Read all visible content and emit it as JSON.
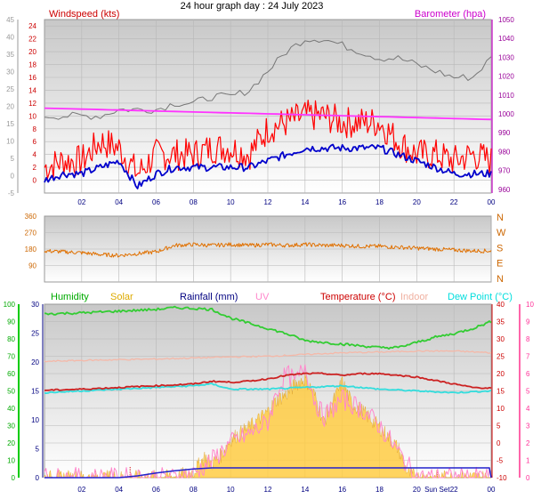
{
  "title": "24 hour graph day : 24 July 2023",
  "chart_data": [
    {
      "type": "line",
      "panel": "wind-baro",
      "left_label": "Windspeed (kts)",
      "right_label": "Barometer (hpa)",
      "x_ticks": [
        "02",
        "04",
        "06",
        "08",
        "10",
        "12",
        "14",
        "16",
        "18",
        "20",
        "22",
        "00"
      ],
      "y_left_outer_ticks": [
        "-5",
        "0",
        "5",
        "10",
        "15",
        "20",
        "25",
        "30",
        "35",
        "40",
        "45"
      ],
      "y_left_outer_range": [
        -5,
        45
      ],
      "y_left_inner_ticks": [
        "0",
        "2",
        "4",
        "6",
        "8",
        "10",
        "12",
        "14",
        "16",
        "18",
        "20",
        "22",
        "24"
      ],
      "y_left_inner_range": [
        -2,
        25
      ],
      "y_right_ticks": [
        "960",
        "970",
        "980",
        "990",
        "1000",
        "1010",
        "1020",
        "1030",
        "1040",
        "1050"
      ],
      "y_right_range": [
        958,
        1050
      ],
      "grid": true,
      "series": [
        {
          "name": "Windspeed (kts)",
          "color": "#ff0000",
          "x": [
            0,
            1,
            2,
            3,
            4,
            5,
            6,
            7,
            8,
            9,
            10,
            11,
            12,
            13,
            14,
            15,
            16,
            17,
            18,
            19,
            20,
            21,
            22,
            23,
            24
          ],
          "values": [
            2,
            3,
            3,
            6,
            5,
            1,
            4,
            4,
            4,
            5,
            5,
            4,
            8,
            9,
            10,
            10,
            9,
            9,
            9,
            6,
            4,
            4,
            3,
            4,
            3
          ]
        },
        {
          "name": "Gust",
          "color": "#777777",
          "x": [
            0,
            1,
            2,
            3,
            4,
            5,
            6,
            7,
            8,
            9,
            10,
            11,
            12,
            13,
            14,
            15,
            16,
            17,
            18,
            19,
            20,
            21,
            22,
            23,
            24
          ],
          "values": [
            10,
            10,
            10,
            10,
            11,
            11,
            11,
            12,
            12,
            13,
            13,
            14,
            17,
            20,
            22,
            22,
            21,
            20,
            19,
            19,
            18,
            17,
            16,
            16,
            19
          ]
        },
        {
          "name": "Average",
          "color": "#0000cc",
          "x": [
            0,
            1,
            2,
            3,
            4,
            5,
            6,
            7,
            8,
            9,
            10,
            11,
            12,
            13,
            14,
            15,
            16,
            17,
            18,
            19,
            20,
            21,
            22,
            23,
            24
          ],
          "values": [
            0,
            1,
            1,
            2,
            3,
            -1,
            1,
            2,
            2,
            2,
            2,
            2,
            3,
            4,
            5,
            5,
            5,
            5,
            5,
            4,
            3,
            2,
            1,
            1,
            1
          ]
        },
        {
          "name": "Barometer (hpa)",
          "color": "#ff33ff",
          "x": [
            0,
            2,
            4,
            6,
            8,
            10,
            12,
            14,
            16,
            18,
            20,
            22,
            24
          ],
          "values": [
            1003,
            1002.5,
            1002,
            1001.5,
            1001,
            1000.5,
            1000,
            999.5,
            999,
            998.5,
            998,
            997.5,
            997
          ]
        }
      ]
    },
    {
      "type": "line",
      "panel": "wind-direction",
      "y_left_ticks": [
        "90",
        "180",
        "270",
        "360"
      ],
      "y_range": [
        0,
        360
      ],
      "y_right_ticks": [
        "N",
        "W",
        "S",
        "E",
        "N"
      ],
      "grid": true,
      "series": [
        {
          "name": "Wind direction",
          "color": "#e07000",
          "x": [
            0,
            1,
            2,
            3,
            4,
            5,
            6,
            7,
            8,
            9,
            10,
            11,
            12,
            13,
            14,
            15,
            16,
            17,
            18,
            19,
            20,
            21,
            22,
            23,
            24
          ],
          "values": [
            170,
            165,
            160,
            150,
            145,
            155,
            165,
            200,
            205,
            200,
            205,
            200,
            205,
            200,
            205,
            200,
            200,
            195,
            195,
            190,
            185,
            180,
            175,
            170,
            170
          ]
        }
      ]
    },
    {
      "type": "area",
      "panel": "temp-humidity-solar",
      "headers": {
        "humidity": "Humidity",
        "solar": "Solar",
        "rainfall": "Rainfall (mm)",
        "uv": "UV",
        "temperature": "Temperature (°C)",
        "indoor": "Indoor",
        "dewpoint": "Dew Point (°C)"
      },
      "header_colors": {
        "humidity": "#00aa00",
        "solar": "#ddaa00",
        "rainfall": "#000080",
        "uv": "#ff88cc",
        "temperature": "#cc0000",
        "indoor": "#f0b0a0",
        "dewpoint": "#00dddd"
      },
      "x_ticks": [
        "02",
        "04",
        "06",
        "08",
        "10",
        "12",
        "14",
        "16",
        "18",
        "20",
        "Sun Set",
        "22",
        "00"
      ],
      "y_humidity_ticks": [
        "0",
        "10",
        "20",
        "30",
        "40",
        "50",
        "60",
        "70",
        "80",
        "90",
        "100"
      ],
      "y_rain_ticks": [
        "0",
        "5",
        "10",
        "15",
        "20",
        "25",
        "30"
      ],
      "y_temp_ticks": [
        "-10",
        "-5",
        "0",
        "5",
        "10",
        "15",
        "20",
        "25",
        "30",
        "35",
        "40"
      ],
      "y_temp_range": [
        -10,
        40
      ],
      "y_uv_ticks": [
        "0",
        "1",
        "2",
        "3",
        "4",
        "5",
        "6",
        "7",
        "8",
        "9",
        "10"
      ],
      "y_uv_range": [
        0,
        10
      ],
      "grid": true,
      "series": [
        {
          "name": "Humidity",
          "color": "#33cc33",
          "axis": "temp",
          "x": [
            0,
            2,
            4,
            6,
            7,
            8,
            9,
            10,
            11,
            12,
            13,
            14,
            15,
            16,
            17,
            18,
            19,
            20,
            21,
            22,
            23,
            24
          ],
          "values": [
            37.2,
            37.5,
            38,
            38.5,
            39,
            38.8,
            38.5,
            36,
            34.5,
            33,
            31.5,
            29.5,
            29,
            28.5,
            28,
            27.5,
            27.5,
            29,
            30.5,
            31.5,
            33,
            35
          ]
        },
        {
          "name": "Temperature (°C)",
          "color": "#cc2222",
          "axis": "temp",
          "x": [
            0,
            2,
            4,
            6,
            8,
            9,
            10,
            11,
            12,
            13,
            14,
            15,
            16,
            17,
            18,
            19,
            20,
            21,
            22,
            23,
            24
          ],
          "values": [
            15.2,
            15.5,
            16,
            16.5,
            17,
            17.8,
            17.5,
            17.8,
            18.5,
            19.5,
            20,
            20,
            19.5,
            20,
            20,
            19.5,
            19,
            18,
            17,
            16,
            15.8
          ]
        },
        {
          "name": "Indoor",
          "color": "#f5b8a8",
          "axis": "temp",
          "x": [
            0,
            2,
            4,
            6,
            8,
            10,
            12,
            14,
            16,
            18,
            20,
            22,
            24
          ],
          "values": [
            23.5,
            23.8,
            24,
            24.2,
            24.5,
            24.8,
            25,
            25.5,
            26,
            26.2,
            26.5,
            26.5,
            26
          ]
        },
        {
          "name": "Dew Point (°C)",
          "color": "#33dddd",
          "axis": "temp",
          "x": [
            0,
            2,
            4,
            6,
            8,
            9,
            10,
            12,
            14,
            16,
            18,
            20,
            22,
            24
          ],
          "values": [
            14.5,
            15,
            15.5,
            16,
            16.5,
            17,
            15.5,
            15.5,
            16,
            16.5,
            15.5,
            15,
            14.5,
            15
          ]
        },
        {
          "name": "Solar",
          "color": "#ffcc44",
          "axis": "uv",
          "x": [
            0,
            6,
            7,
            8,
            8.6,
            9,
            9.5,
            10,
            11,
            12,
            12.5,
            13,
            13.5,
            14,
            14.5,
            15,
            16,
            16.5,
            17,
            18,
            19,
            19.5,
            20,
            24
          ],
          "values": [
            0,
            0,
            0.05,
            0.3,
            1.2,
            0.8,
            1.3,
            2.2,
            2.9,
            3.8,
            4.5,
            4.8,
            5.4,
            5.7,
            4.8,
            3.2,
            5.5,
            4.3,
            3.9,
            2.9,
            1.7,
            0.3,
            0,
            0
          ]
        },
        {
          "name": "UV",
          "color": "#ff88cc",
          "axis": "uv",
          "x": [
            0,
            6,
            7,
            8,
            9,
            10,
            11,
            12,
            12.5,
            13,
            13.5,
            14,
            14.5,
            15,
            16,
            17,
            18,
            19,
            20,
            24
          ],
          "values": [
            0,
            0,
            0,
            0.2,
            1,
            2,
            2.5,
            3.2,
            5,
            6,
            5.5,
            6.5,
            4.5,
            3.5,
            4.5,
            4,
            3,
            1.5,
            0,
            0
          ]
        },
        {
          "name": "Rainfall (mm)",
          "color": "#2222cc",
          "axis": "rain",
          "x": [
            0,
            4,
            5,
            6,
            7,
            8,
            9,
            23.9,
            24
          ],
          "values": [
            0,
            0,
            0.3,
            0.8,
            1.2,
            1.5,
            1.7,
            1.7,
            0
          ]
        }
      ]
    }
  ]
}
